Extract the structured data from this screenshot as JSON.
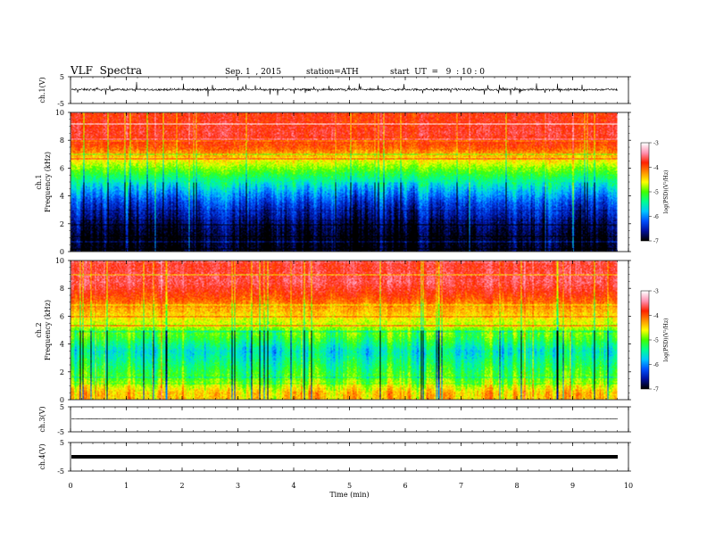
{
  "header": {
    "title": "VLF  Spectra",
    "date": "Sep. 1  , 2015",
    "station": "station=ATH",
    "start": "start  UT  =   9  : 10 : 0"
  },
  "chart_data": [
    {
      "type": "line",
      "panel": "ch1-waveform",
      "ylabel": "ch.1(V)",
      "ylim": [
        -5,
        5
      ],
      "yticks": [
        5,
        -5
      ],
      "xlim": [
        0,
        10
      ],
      "note_values": "noisy waveform centered near 0 V, amplitude about ±1 V with spikes to ±2.5 V",
      "baseline": 0.2
    },
    {
      "type": "heatmap",
      "panel": "ch1-spectrogram",
      "ylabel": "ch.1\nFrequency  (kHz)",
      "ylabel_lines": [
        "ch.1",
        "Frequency  (kHz)"
      ],
      "ylim": [
        0,
        10
      ],
      "yticks": [
        0,
        2,
        4,
        6,
        8,
        10
      ],
      "xlim": [
        0,
        9.8
      ],
      "colorbar": {
        "label": "log(PSD)(V²/Hz)",
        "ticks": [
          -3,
          -4,
          -5,
          -6,
          -7
        ],
        "range": [
          -7,
          -3
        ]
      },
      "profile_khz_logpsd": [
        [
          0.5,
          -7.0
        ],
        [
          1.5,
          -6.9
        ],
        [
          2.5,
          -6.6
        ],
        [
          3.5,
          -6.3
        ],
        [
          4.5,
          -5.8
        ],
        [
          5.5,
          -5.2
        ],
        [
          6.5,
          -4.6
        ],
        [
          7.5,
          -4.0
        ],
        [
          8.5,
          -3.7
        ],
        [
          9.5,
          -3.8
        ]
      ]
    },
    {
      "type": "heatmap",
      "panel": "ch2-spectrogram",
      "ylabel": "ch.2\nFrequency  (kHz)",
      "ylabel_lines": [
        "ch.2",
        "Frequency  (kHz)"
      ],
      "ylim": [
        0,
        10
      ],
      "yticks": [
        0,
        2,
        4,
        6,
        8,
        10
      ],
      "xlim": [
        0,
        9.8
      ],
      "colorbar": {
        "label": "log(PSD)(V²/Hz)",
        "ticks": [
          -3,
          -4,
          -5,
          -6,
          -7
        ],
        "range": [
          -7,
          -3
        ]
      },
      "profile_khz_logpsd": [
        [
          0.5,
          -4.4
        ],
        [
          1.5,
          -5.0
        ],
        [
          2.5,
          -5.3
        ],
        [
          3.5,
          -5.6
        ],
        [
          4.5,
          -5.1
        ],
        [
          5.5,
          -4.7
        ],
        [
          6.5,
          -4.3
        ],
        [
          7.5,
          -3.9
        ],
        [
          8.5,
          -3.6
        ],
        [
          9.5,
          -3.7
        ]
      ]
    },
    {
      "type": "line",
      "panel": "ch3-waveform",
      "ylabel": "ch.3(V)",
      "ylim": [
        -5,
        5
      ],
      "yticks": [
        5,
        -5
      ],
      "xlim": [
        0,
        10
      ],
      "baseline": 0.2
    },
    {
      "type": "line",
      "panel": "ch4-waveform",
      "ylabel": "ch.4(V)",
      "ylim": [
        -5,
        5
      ],
      "yticks": [
        5,
        -5
      ],
      "xlim": [
        0,
        10
      ],
      "baseline": 0
    }
  ],
  "xaxis": {
    "label": "Time  (min)",
    "ticks": [
      0,
      1,
      2,
      3,
      4,
      5,
      6,
      7,
      8,
      9,
      10
    ],
    "range": [
      0,
      10
    ]
  },
  "colors": {
    "scale": [
      "#000000",
      "#0010a0",
      "#0050ff",
      "#00c8ff",
      "#00ff90",
      "#40ff00",
      "#ffff00",
      "#ff9000",
      "#ff2000",
      "#ff90b0",
      "#ffffff"
    ]
  }
}
